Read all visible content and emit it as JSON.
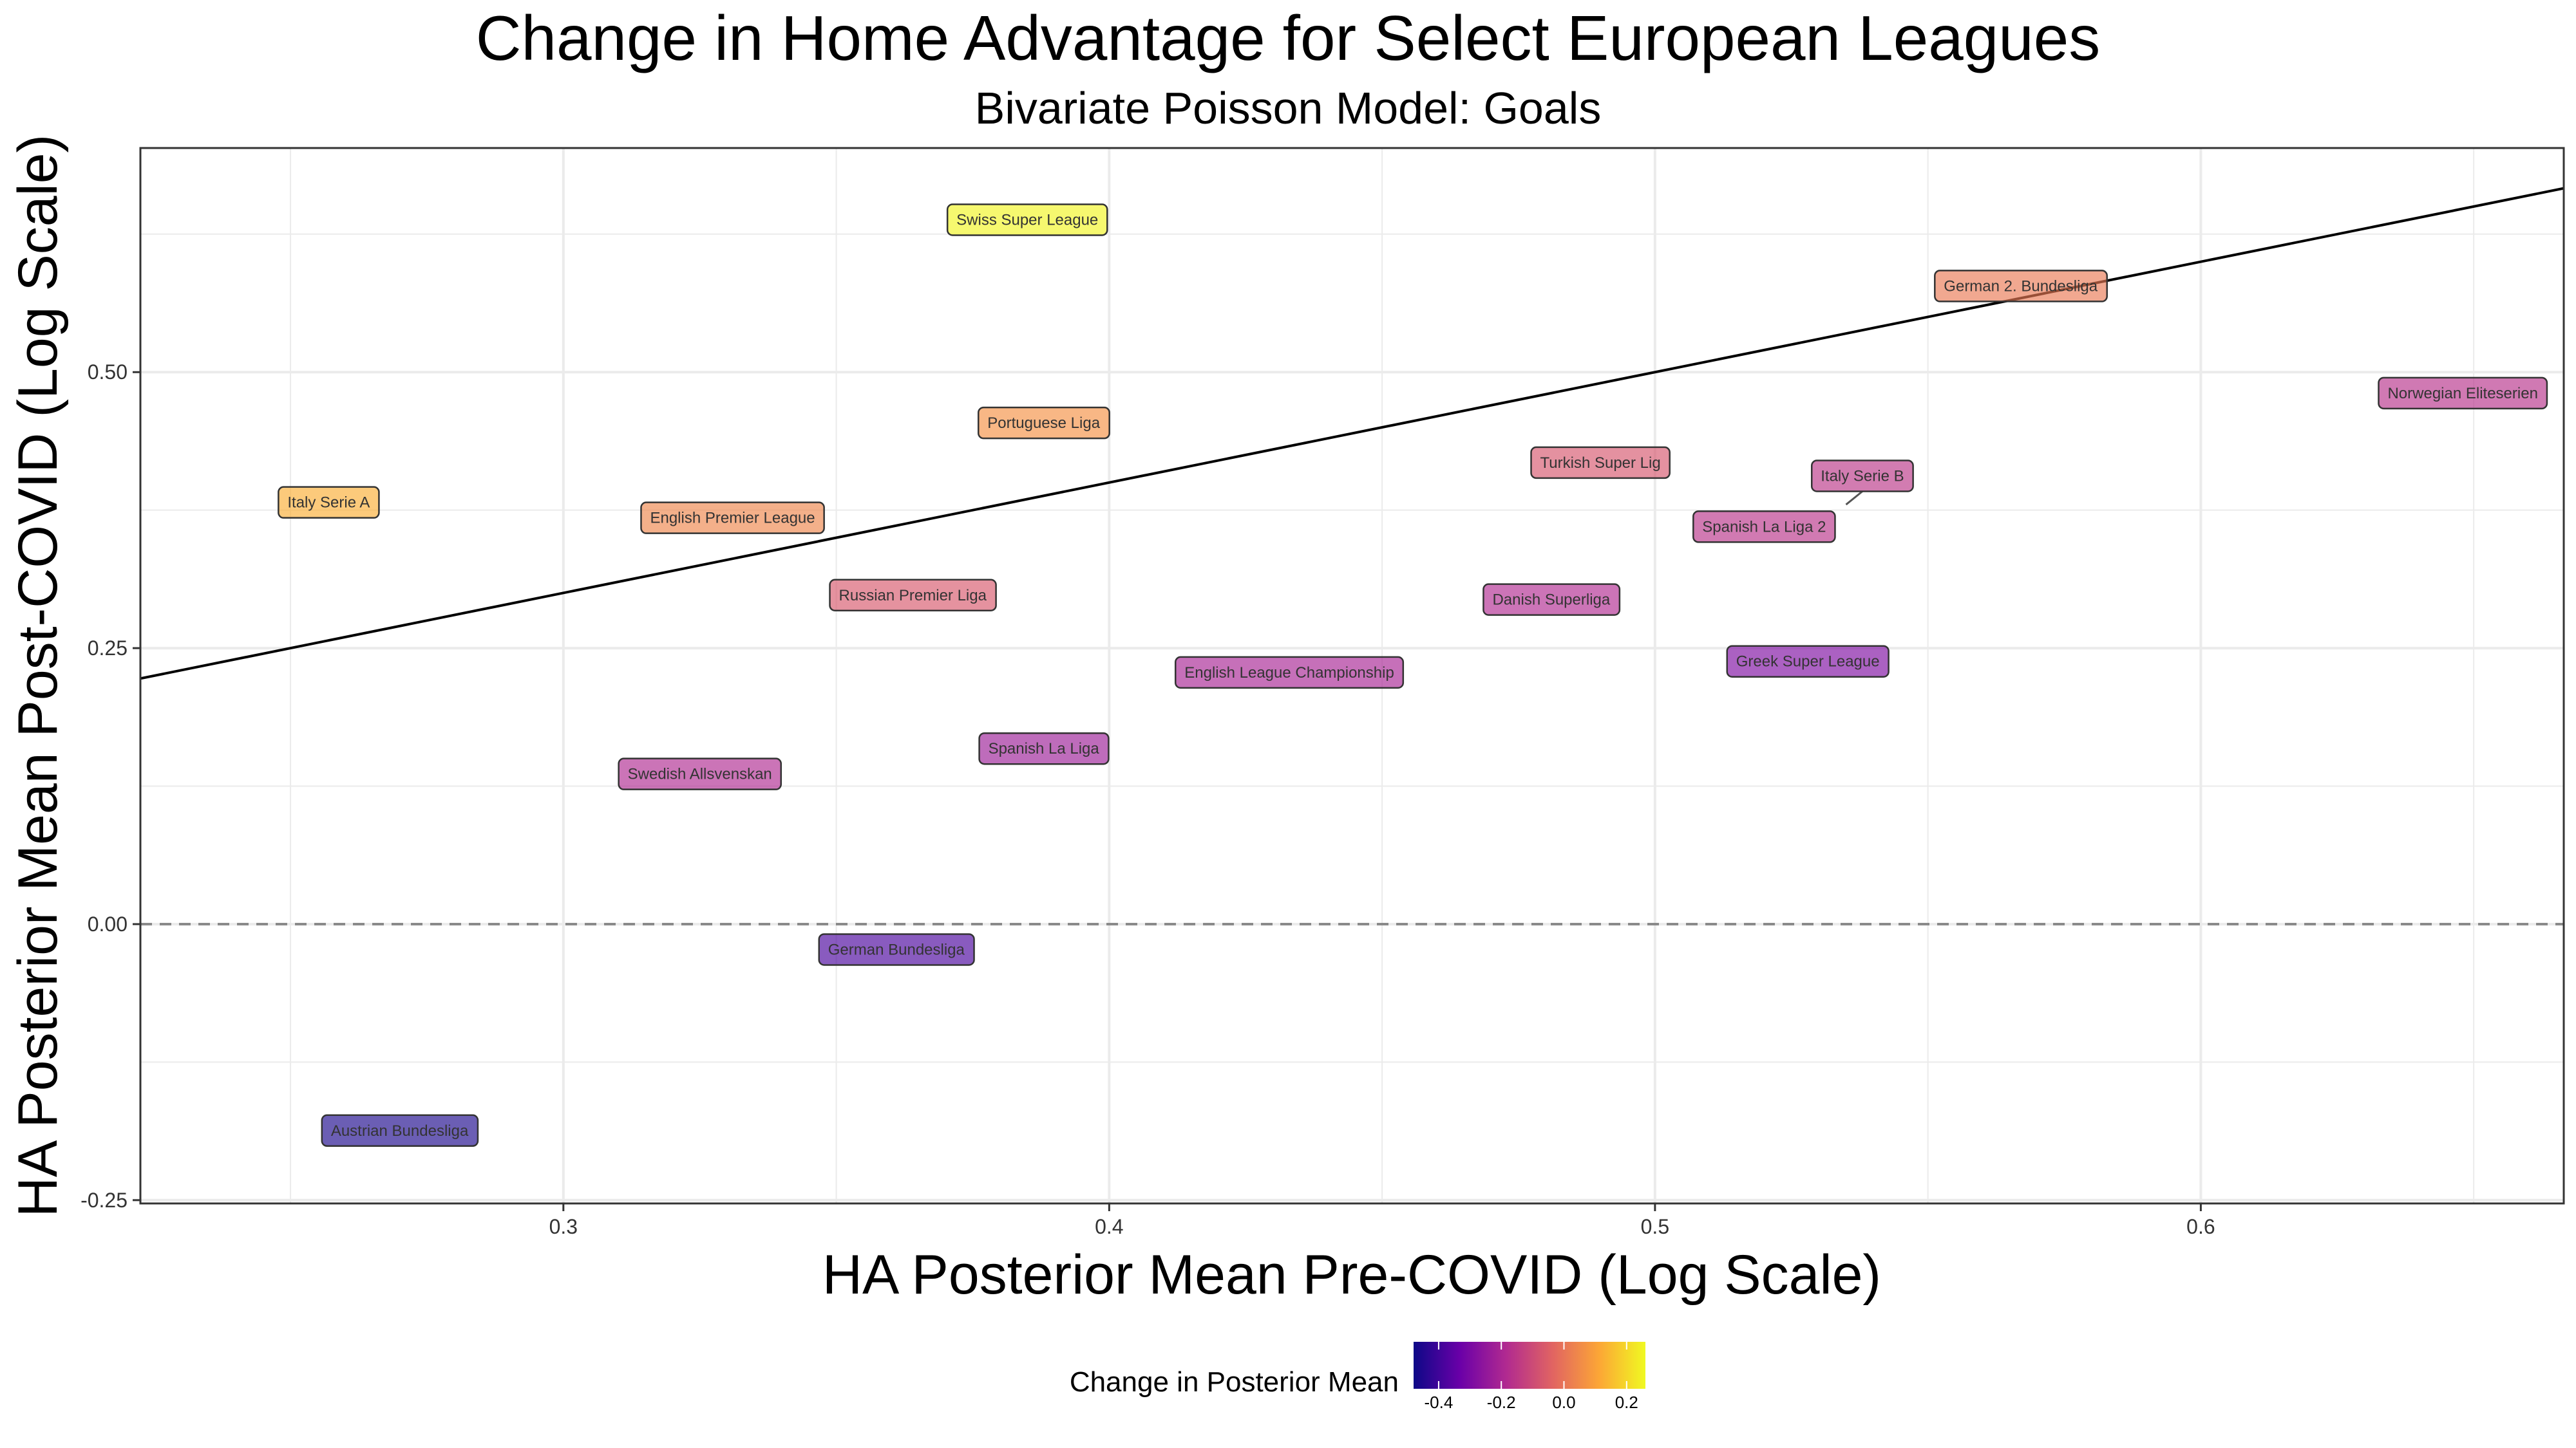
{
  "chart_data": {
    "type": "scatter",
    "title": "Change in Home Advantage for Select European Leagues",
    "subtitle": "Bivariate Poisson Model: Goals",
    "xlabel": "HA Posterior Mean Pre-COVID (Log Scale)",
    "ylabel": "HA Posterior Mean Post-COVID (Log Scale)",
    "xlim": [
      0.2225,
      0.6665
    ],
    "ylim": [
      -0.253,
      0.703
    ],
    "x_ticks": [
      "0.3",
      "0.4",
      "0.5",
      "0.6"
    ],
    "y_ticks": [
      "-0.25",
      "0.00",
      "0.25",
      "0.50"
    ],
    "reference_line": "y = x",
    "zero_line": "dashed",
    "grid": true,
    "legend": {
      "title": "Change in Posterior Mean",
      "position": "bottom",
      "ticks": [
        "-0.4",
        "-0.2",
        "0.0",
        "0.2"
      ],
      "range": [
        -0.48,
        0.26
      ],
      "colors": [
        "#0d0887",
        "#6a00a8",
        "#b12a90",
        "#e16462",
        "#fca636",
        "#f0f921"
      ]
    },
    "points": [
      {
        "league": "Swiss Super League",
        "x": 0.385,
        "y": 0.638
      },
      {
        "league": "German 2. Bundesliga",
        "x": 0.567,
        "y": 0.578
      },
      {
        "league": "Portuguese Liga",
        "x": 0.388,
        "y": 0.454
      },
      {
        "league": "Norwegian Eliteserien",
        "x": 0.648,
        "y": 0.481
      },
      {
        "league": "Turkish Super Lig",
        "x": 0.49,
        "y": 0.418
      },
      {
        "league": "Italy Serie B",
        "x": 0.535,
        "y": 0.38
      },
      {
        "league": "Italy Serie A",
        "x": 0.257,
        "y": 0.382
      },
      {
        "league": "English Premier League",
        "x": 0.331,
        "y": 0.368
      },
      {
        "league": "Spanish La Liga 2",
        "x": 0.52,
        "y": 0.36
      },
      {
        "league": "Russian Premier Liga",
        "x": 0.364,
        "y": 0.298
      },
      {
        "league": "Danish Superliga",
        "x": 0.481,
        "y": 0.294
      },
      {
        "league": "Greek Super League",
        "x": 0.528,
        "y": 0.238
      },
      {
        "league": "English League Championship",
        "x": 0.433,
        "y": 0.228
      },
      {
        "league": "Spanish La Liga",
        "x": 0.388,
        "y": 0.159
      },
      {
        "league": "Swedish Allsvenskan",
        "x": 0.325,
        "y": 0.136
      },
      {
        "league": "German Bundesliga",
        "x": 0.361,
        "y": -0.023
      },
      {
        "league": "Austrian Bundesliga",
        "x": 0.27,
        "y": -0.187
      }
    ],
    "label_offsets": [
      {
        "league": "Italy Serie B",
        "dx": 0.003,
        "dy": 0.026
      }
    ]
  }
}
